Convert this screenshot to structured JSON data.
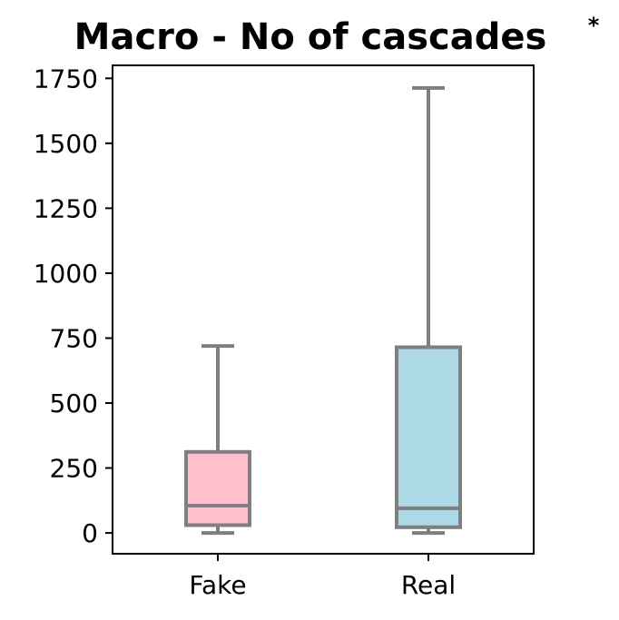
{
  "chart_data": {
    "type": "box",
    "title": "Macro - No of cascades",
    "significance_marker": "*",
    "xlabel": "",
    "ylabel": "",
    "ylim": [
      -80,
      1800
    ],
    "yticks": [
      0,
      250,
      500,
      750,
      1000,
      1250,
      1500,
      1750
    ],
    "categories": [
      "Fake",
      "Real"
    ],
    "boxes": [
      {
        "category": "Fake",
        "whisker_low": 0,
        "q1": 30,
        "median": 105,
        "q3": 312,
        "whisker_high": 720,
        "color": "#ffc0cb"
      },
      {
        "category": "Real",
        "whisker_low": 0,
        "q1": 22,
        "median": 95,
        "q3": 715,
        "whisker_high": 1713,
        "color": "#add8e6"
      }
    ],
    "line_color": "#7f7f7f",
    "grid": false
  }
}
